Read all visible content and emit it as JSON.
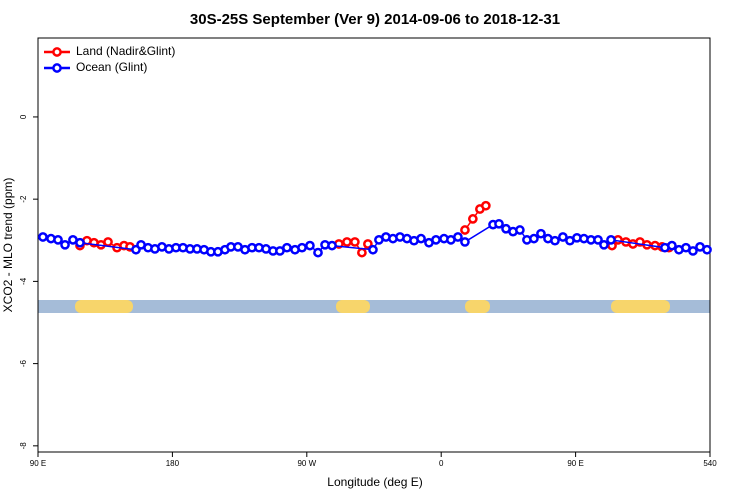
{
  "chart_data": {
    "type": "line",
    "title": "30S-25S September (Ver 9)   2014-09-06 to 2018-12-31",
    "x_label": "Longitude (deg E)",
    "y_label": "XCO2 - MLO trend (ppm)",
    "xlim": [
      90,
      540
    ],
    "ylim": [
      -8.15,
      1.92
    ],
    "xticks": [
      {
        "value": 90,
        "label": "90 E"
      },
      180,
      {
        "value": 270,
        "label": "90 W"
      },
      {
        "value": 360,
        "label": "0"
      },
      {
        "value": 450,
        "label": "90 E"
      },
      540
    ],
    "yticks": [
      0,
      -2,
      -4,
      -6,
      -8
    ],
    "legend": "top-left",
    "series": [
      {
        "name": "Land (Nadir&Glint)",
        "color": "#ff0000",
        "x": [
          118.1,
          122.8,
          127.5,
          132.2,
          136.9,
          142.9,
          147.6,
          151.6,
          null,
          291.5,
          296.9,
          302.2,
          306.9,
          310.9,
          null,
          375.9,
          381.2,
          385.9,
          389.9,
          null,
          474.4,
          478.4,
          483.7,
          488.4,
          493.1,
          497.8,
          503.2,
          507.9,
          512.5
        ],
        "values": [
          -3.13,
          -3.01,
          -3.06,
          -3.11,
          -3.04,
          -3.18,
          -3.13,
          -3.16,
          null,
          -3.09,
          -3.04,
          -3.04,
          -3.3,
          -3.09,
          null,
          -2.75,
          -2.48,
          -2.24,
          -2.16,
          null,
          -3.13,
          -2.99,
          -3.04,
          -3.09,
          -3.04,
          -3.11,
          -3.13,
          -3.16,
          -3.18
        ]
      },
      {
        "name": "Ocean (Glint)",
        "color": "#0000ff",
        "x": [
          93.3,
          98.7,
          103.4,
          108.1,
          113.4,
          118.1,
          155.6,
          159,
          163.7,
          168.3,
          173,
          177.7,
          182.4,
          187.1,
          191.8,
          196.5,
          201.2,
          205.8,
          210.5,
          215.2,
          219.2,
          223.9,
          228.6,
          233.3,
          238,
          242.7,
          247.4,
          252,
          256.7,
          262.1,
          266.8,
          272.1,
          277.5,
          282.2,
          286.9,
          314.3,
          318.3,
          323,
          327.7,
          332.4,
          337.1,
          341.8,
          346.5,
          351.8,
          356.5,
          361.9,
          366.5,
          371.2,
          375.9,
          394.7,
          398.7,
          403.4,
          408.1,
          412.7,
          417.4,
          422.1,
          426.8,
          431.5,
          436.2,
          441.5,
          446.2,
          450.9,
          455.6,
          460.3,
          465,
          469,
          473.7,
          509.8,
          514.5,
          519.2,
          523.9,
          528.6,
          533.3,
          538
        ],
        "values": [
          -2.92,
          -2.96,
          -2.99,
          -3.11,
          -2.99,
          -3.06,
          -3.23,
          -3.11,
          -3.18,
          -3.21,
          -3.16,
          -3.21,
          -3.18,
          -3.18,
          -3.21,
          -3.21,
          -3.23,
          -3.28,
          -3.28,
          -3.23,
          -3.16,
          -3.16,
          -3.23,
          -3.18,
          -3.18,
          -3.21,
          -3.26,
          -3.26,
          -3.18,
          -3.23,
          -3.18,
          -3.13,
          -3.3,
          -3.11,
          -3.13,
          -3.23,
          -2.99,
          -2.92,
          -2.96,
          -2.92,
          -2.96,
          -3.01,
          -2.96,
          -3.06,
          -2.99,
          -2.96,
          -2.99,
          -2.92,
          -3.04,
          -2.62,
          -2.6,
          -2.72,
          -2.79,
          -2.75,
          -2.99,
          -2.96,
          -2.84,
          -2.96,
          -3.01,
          -2.92,
          -3.01,
          -2.94,
          -2.96,
          -2.99,
          -2.99,
          -3.11,
          -2.99,
          -3.18,
          -3.13,
          -3.23,
          -3.18,
          -3.26,
          -3.16,
          -3.23
        ]
      }
    ]
  }
}
